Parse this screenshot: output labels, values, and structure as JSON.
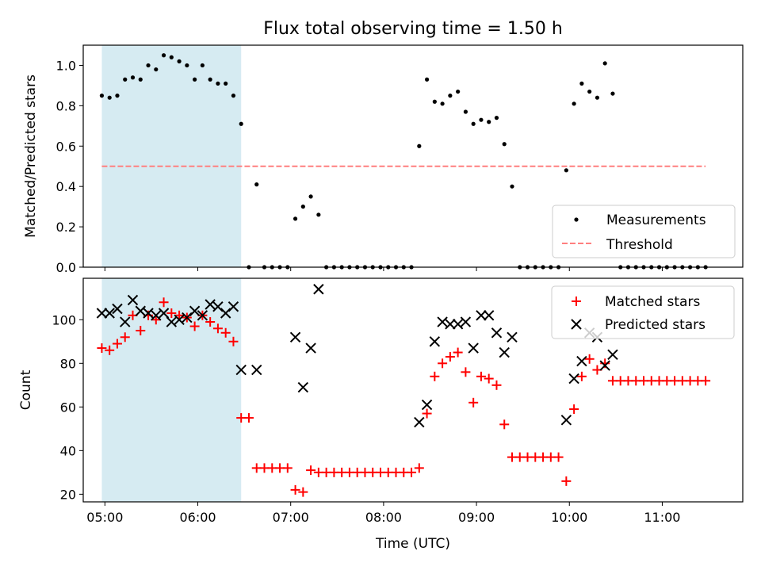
{
  "chart_data": [
    {
      "type": "scatter",
      "title": "Flux total observing time = 1.50 h",
      "ylabel": "Matched/Predicted stars",
      "xlabel": "",
      "xlim": [
        "04:46",
        "11:52"
      ],
      "ylim": [
        0,
        1.1
      ],
      "yticks": [
        0.0,
        0.2,
        0.4,
        0.6,
        0.8,
        1.0
      ],
      "ytick_labels": [
        "0.0",
        "0.2",
        "0.4",
        "0.6",
        "0.8",
        "1.0"
      ],
      "highlight_span": {
        "x0": "04:58",
        "x1": "06:28",
        "color": "#add8e6"
      },
      "legend": {
        "placement": "lower right",
        "entries": [
          {
            "label": "Measurements",
            "marker": "dot",
            "color": "#000000"
          },
          {
            "label": "Threshold",
            "marker": "dashed-line",
            "color": "#ff7f7f"
          }
        ]
      },
      "threshold": {
        "name": "Threshold",
        "y": 0.5,
        "x0": "04:58",
        "x1": "11:28",
        "color": "#ff7f7f"
      },
      "series": [
        {
          "name": "Measurements",
          "color": "#000000",
          "points": [
            [
              "04:58",
              0.85
            ],
            [
              "05:03",
              0.84
            ],
            [
              "05:08",
              0.85
            ],
            [
              "05:13",
              0.93
            ],
            [
              "05:18",
              0.94
            ],
            [
              "05:23",
              0.93
            ],
            [
              "05:28",
              1.0
            ],
            [
              "05:33",
              0.98
            ],
            [
              "05:38",
              1.05
            ],
            [
              "05:43",
              1.04
            ],
            [
              "05:48",
              1.02
            ],
            [
              "05:53",
              1.0
            ],
            [
              "05:58",
              0.93
            ],
            [
              "06:03",
              1.0
            ],
            [
              "06:08",
              0.93
            ],
            [
              "06:13",
              0.91
            ],
            [
              "06:18",
              0.91
            ],
            [
              "06:23",
              0.85
            ],
            [
              "06:28",
              0.71
            ],
            [
              "06:33",
              0.0
            ],
            [
              "06:38",
              0.41
            ],
            [
              "06:43",
              0.0
            ],
            [
              "06:48",
              0.0
            ],
            [
              "06:53",
              0.0
            ],
            [
              "06:58",
              0.0
            ],
            [
              "07:03",
              0.24
            ],
            [
              "07:08",
              0.3
            ],
            [
              "07:13",
              0.35
            ],
            [
              "07:18",
              0.26
            ],
            [
              "07:23",
              0.0
            ],
            [
              "07:28",
              0.0
            ],
            [
              "07:33",
              0.0
            ],
            [
              "07:38",
              0.0
            ],
            [
              "07:43",
              0.0
            ],
            [
              "07:48",
              0.0
            ],
            [
              "07:53",
              0.0
            ],
            [
              "07:58",
              0.0
            ],
            [
              "08:03",
              0.0
            ],
            [
              "08:08",
              0.0
            ],
            [
              "08:13",
              0.0
            ],
            [
              "08:18",
              0.0
            ],
            [
              "08:23",
              0.6
            ],
            [
              "08:28",
              0.93
            ],
            [
              "08:33",
              0.82
            ],
            [
              "08:38",
              0.81
            ],
            [
              "08:43",
              0.85
            ],
            [
              "08:48",
              0.87
            ],
            [
              "08:53",
              0.77
            ],
            [
              "08:58",
              0.71
            ],
            [
              "09:03",
              0.73
            ],
            [
              "09:08",
              0.72
            ],
            [
              "09:13",
              0.74
            ],
            [
              "09:18",
              0.61
            ],
            [
              "09:23",
              0.4
            ],
            [
              "09:28",
              0.0
            ],
            [
              "09:33",
              0.0
            ],
            [
              "09:38",
              0.0
            ],
            [
              "09:43",
              0.0
            ],
            [
              "09:48",
              0.0
            ],
            [
              "09:53",
              0.0
            ],
            [
              "09:58",
              0.48
            ],
            [
              "10:03",
              0.81
            ],
            [
              "10:08",
              0.91
            ],
            [
              "10:13",
              0.87
            ],
            [
              "10:18",
              0.84
            ],
            [
              "10:23",
              1.01
            ],
            [
              "10:28",
              0.86
            ],
            [
              "10:33",
              0.0
            ],
            [
              "10:38",
              0.0
            ],
            [
              "10:43",
              0.0
            ],
            [
              "10:48",
              0.0
            ],
            [
              "10:53",
              0.0
            ],
            [
              "10:58",
              0.0
            ],
            [
              "11:03",
              0.0
            ],
            [
              "11:08",
              0.0
            ],
            [
              "11:13",
              0.0
            ],
            [
              "11:18",
              0.0
            ],
            [
              "11:23",
              0.0
            ],
            [
              "11:28",
              0.0
            ]
          ]
        }
      ]
    },
    {
      "type": "scatter",
      "title": "",
      "ylabel": "Count",
      "xlabel": "Time (UTC)",
      "xlim": [
        "04:46",
        "11:52"
      ],
      "ylim": [
        16.5,
        119
      ],
      "yticks": [
        20,
        40,
        60,
        80,
        100
      ],
      "ytick_labels": [
        "20",
        "40",
        "60",
        "80",
        "100"
      ],
      "xticks": [
        "05:00",
        "06:00",
        "07:00",
        "08:00",
        "09:00",
        "10:00",
        "11:00"
      ],
      "xtick_labels": [
        "05:00",
        "06:00",
        "07:00",
        "08:00",
        "09:00",
        "10:00",
        "11:00"
      ],
      "highlight_span": {
        "x0": "04:58",
        "x1": "06:28",
        "color": "#add8e6"
      },
      "legend": {
        "placement": "upper right",
        "entries": [
          {
            "label": "Matched stars",
            "marker": "plus",
            "color": "#ff0000"
          },
          {
            "label": "Predicted stars",
            "marker": "x",
            "color": "#000000"
          }
        ]
      },
      "series": [
        {
          "name": "Matched stars",
          "color": "#ff0000",
          "points": [
            [
              "04:58",
              87
            ],
            [
              "05:03",
              86
            ],
            [
              "05:08",
              89
            ],
            [
              "05:13",
              92
            ],
            [
              "05:18",
              102
            ],
            [
              "05:23",
              95
            ],
            [
              "05:28",
              102
            ],
            [
              "05:33",
              100
            ],
            [
              "05:38",
              108
            ],
            [
              "05:43",
              103
            ],
            [
              "05:48",
              102
            ],
            [
              "05:53",
              101
            ],
            [
              "05:58",
              97
            ],
            [
              "06:03",
              102
            ],
            [
              "06:08",
              99
            ],
            [
              "06:13",
              96
            ],
            [
              "06:18",
              94
            ],
            [
              "06:23",
              90
            ],
            [
              "06:28",
              55
            ],
            [
              "06:33",
              55
            ],
            [
              "06:38",
              32
            ],
            [
              "06:43",
              32
            ],
            [
              "06:48",
              32
            ],
            [
              "06:53",
              32
            ],
            [
              "06:58",
              32
            ],
            [
              "07:03",
              22
            ],
            [
              "07:08",
              21
            ],
            [
              "07:13",
              31
            ],
            [
              "07:18",
              30
            ],
            [
              "07:23",
              30
            ],
            [
              "07:28",
              30
            ],
            [
              "07:33",
              30
            ],
            [
              "07:38",
              30
            ],
            [
              "07:43",
              30
            ],
            [
              "07:48",
              30
            ],
            [
              "07:53",
              30
            ],
            [
              "07:58",
              30
            ],
            [
              "08:03",
              30
            ],
            [
              "08:08",
              30
            ],
            [
              "08:13",
              30
            ],
            [
              "08:18",
              30
            ],
            [
              "08:23",
              32
            ],
            [
              "08:28",
              57
            ],
            [
              "08:33",
              74
            ],
            [
              "08:38",
              80
            ],
            [
              "08:43",
              83
            ],
            [
              "08:48",
              85
            ],
            [
              "08:53",
              76
            ],
            [
              "08:58",
              62
            ],
            [
              "09:03",
              74
            ],
            [
              "09:08",
              73
            ],
            [
              "09:13",
              70
            ],
            [
              "09:18",
              52
            ],
            [
              "09:23",
              37
            ],
            [
              "09:28",
              37
            ],
            [
              "09:33",
              37
            ],
            [
              "09:38",
              37
            ],
            [
              "09:43",
              37
            ],
            [
              "09:48",
              37
            ],
            [
              "09:53",
              37
            ],
            [
              "09:58",
              26
            ],
            [
              "10:03",
              59
            ],
            [
              "10:08",
              74
            ],
            [
              "10:13",
              82
            ],
            [
              "10:18",
              77
            ],
            [
              "10:23",
              80
            ],
            [
              "10:28",
              72
            ],
            [
              "10:33",
              72
            ],
            [
              "10:38",
              72
            ],
            [
              "10:43",
              72
            ],
            [
              "10:48",
              72
            ],
            [
              "10:53",
              72
            ],
            [
              "10:58",
              72
            ],
            [
              "11:03",
              72
            ],
            [
              "11:08",
              72
            ],
            [
              "11:13",
              72
            ],
            [
              "11:18",
              72
            ],
            [
              "11:23",
              72
            ],
            [
              "11:28",
              72
            ]
          ]
        },
        {
          "name": "Predicted stars",
          "color": "#000000",
          "points": [
            [
              "04:58",
              103
            ],
            [
              "05:03",
              103
            ],
            [
              "05:08",
              105
            ],
            [
              "05:13",
              99
            ],
            [
              "05:18",
              109
            ],
            [
              "05:23",
              104
            ],
            [
              "05:28",
              103
            ],
            [
              "05:33",
              102
            ],
            [
              "05:38",
              103
            ],
            [
              "05:43",
              99
            ],
            [
              "05:48",
              100
            ],
            [
              "05:53",
              101
            ],
            [
              "05:58",
              104
            ],
            [
              "06:03",
              102
            ],
            [
              "06:08",
              107
            ],
            [
              "06:13",
              106
            ],
            [
              "06:18",
              103
            ],
            [
              "06:23",
              106
            ],
            [
              "06:28",
              77
            ],
            [
              "06:38",
              77
            ],
            [
              "07:03",
              92
            ],
            [
              "07:08",
              69
            ],
            [
              "07:13",
              87
            ],
            [
              "07:18",
              114
            ],
            [
              "08:23",
              53
            ],
            [
              "08:28",
              61
            ],
            [
              "08:33",
              90
            ],
            [
              "08:38",
              99
            ],
            [
              "08:43",
              98
            ],
            [
              "08:48",
              98
            ],
            [
              "08:53",
              99
            ],
            [
              "08:58",
              87
            ],
            [
              "09:03",
              102
            ],
            [
              "09:08",
              102
            ],
            [
              "09:13",
              94
            ],
            [
              "09:18",
              85
            ],
            [
              "09:23",
              92
            ],
            [
              "09:58",
              54
            ],
            [
              "10:03",
              73
            ],
            [
              "10:08",
              81
            ],
            [
              "10:13",
              94
            ],
            [
              "10:18",
              92
            ],
            [
              "10:23",
              79
            ],
            [
              "10:28",
              84
            ]
          ]
        }
      ]
    }
  ]
}
